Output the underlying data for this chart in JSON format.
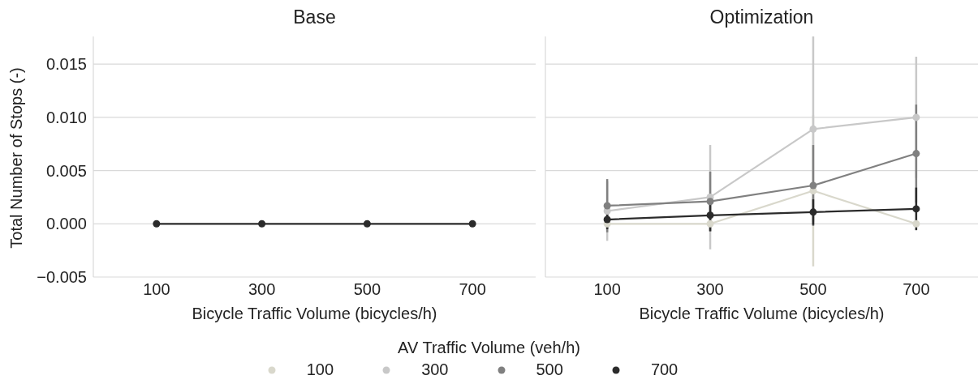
{
  "chart_data": [
    {
      "type": "line",
      "title": "Base",
      "xlabel": "Bicycle Traffic Volume (bicycles/h)",
      "ylabel": "Total Number of Stops (-)",
      "categories": [
        "100",
        "300",
        "500",
        "700"
      ],
      "series": [
        {
          "color": "#2b2b2b",
          "values": [
            0,
            0,
            0,
            0
          ]
        }
      ],
      "ylim": [
        -0.005,
        0.0176
      ],
      "yticks": [
        {
          "value": -0.005,
          "label": "−0.005"
        },
        {
          "value": 0,
          "label": "0.000"
        },
        {
          "value": 0.005,
          "label": "0.005"
        },
        {
          "value": 0.01,
          "label": "0.010"
        },
        {
          "value": 0.015,
          "label": "0.015"
        }
      ],
      "grid": "y",
      "marker": "circle",
      "line_style": "solid",
      "legend": false
    },
    {
      "type": "line",
      "title": "Optimization",
      "xlabel": "Bicycle Traffic Volume (bicycles/h)",
      "legend_title": "AV Traffic Volume (veh/h)",
      "categories": [
        "100",
        "300",
        "500",
        "700"
      ],
      "series": [
        {
          "name": "100",
          "color": "#d9d8cc",
          "values": [
            0,
            0,
            0.0031,
            0
          ],
          "errors": [
            null,
            null,
            0.0071,
            null
          ]
        },
        {
          "name": "300",
          "color": "#c8c8c8",
          "values": [
            0.0012,
            0.0025,
            0.0089,
            0.01
          ],
          "errors": [
            0.0028,
            0.0049,
            0.0087,
            0.0057
          ]
        },
        {
          "name": "500",
          "color": "#808080",
          "values": [
            0.0017,
            0.0021,
            0.0036,
            0.0066
          ],
          "errors": [
            0.0025,
            0.0028,
            0.0038,
            0.0046
          ]
        },
        {
          "name": "700",
          "color": "#2b2b2b",
          "values": [
            0.0004,
            0.0008,
            0.0011,
            0.0014
          ],
          "errors": [
            0.0009,
            0.0015,
            0.0012,
            0.002
          ]
        }
      ],
      "ylim": [
        -0.005,
        0.0176
      ],
      "yticks": [
        {
          "value": -0.005,
          "label": null
        },
        {
          "value": 0,
          "label": null
        },
        {
          "value": 0.005,
          "label": null
        },
        {
          "value": 0.01,
          "label": null
        },
        {
          "value": 0.015,
          "label": null
        }
      ],
      "grid": "y",
      "marker": "circle",
      "line_style": "solid",
      "legend": "bottom",
      "tick_labels": "x"
    }
  ]
}
